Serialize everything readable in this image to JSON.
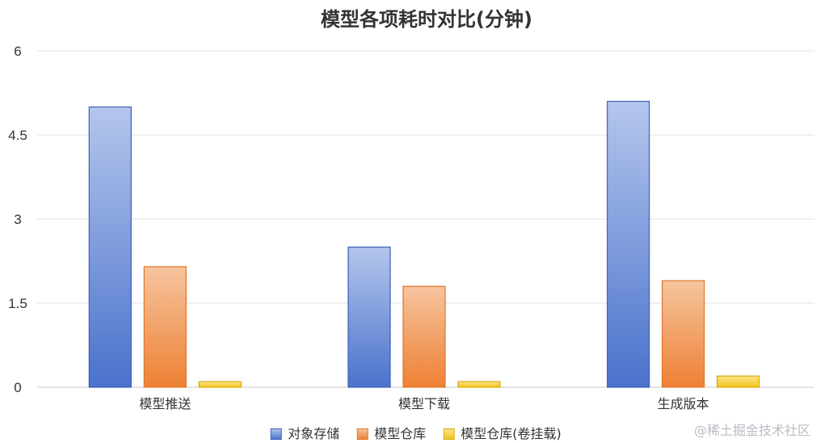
{
  "chart_data": {
    "type": "bar",
    "title": "模型各项耗时对比(分钟)",
    "xlabel": "",
    "ylabel": "",
    "categories": [
      "模型推送",
      "模型下载",
      "生成版本"
    ],
    "series": [
      {
        "name": "对象存储",
        "values": [
          5.0,
          2.5,
          5.1
        ],
        "color": "#4a72cc",
        "color_light": "#b4c6ec",
        "stroke": "#3b5fb8"
      },
      {
        "name": "模型仓库",
        "values": [
          2.15,
          1.8,
          1.9
        ],
        "color": "#ee8134",
        "color_light": "#f6c49e",
        "stroke": "#e0732a"
      },
      {
        "name": "模型仓库(卷挂载)",
        "values": [
          0.1,
          0.1,
          0.2
        ],
        "color": "#f3c31c",
        "color_light": "#fbe48a",
        "stroke": "#d9a90f"
      }
    ],
    "ylim": [
      0,
      6
    ],
    "yticks": [
      0,
      1.5,
      3,
      4.5,
      6
    ],
    "ytick_labels": [
      "0",
      "1.5",
      "3",
      "4.5",
      "6"
    ],
    "grid": true,
    "legend_position": "bottom-center"
  },
  "watermark": "@稀土掘金技术社区"
}
